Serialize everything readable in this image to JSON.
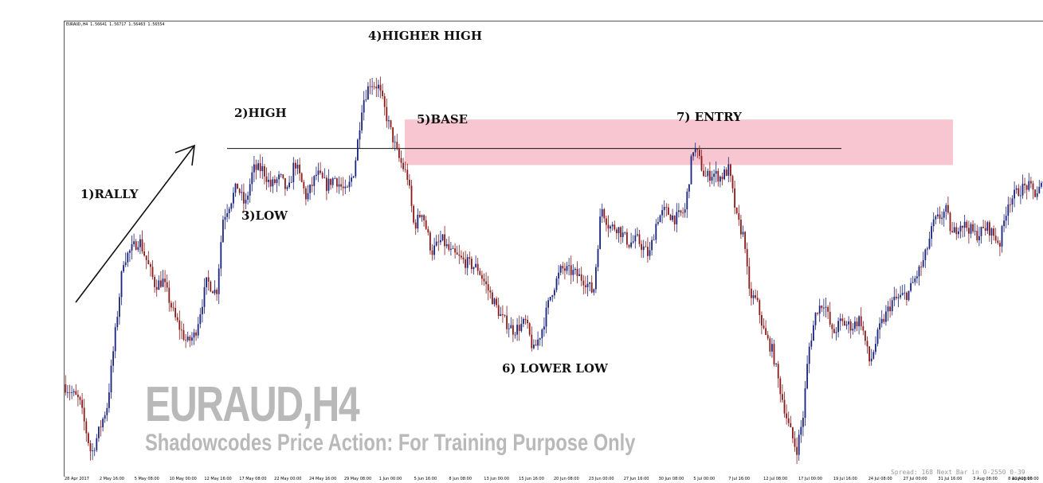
{
  "symbol_header": "EURAUD,H4  1.56641 1.56717 1.56463 1.56554",
  "watermark": {
    "title": "EURAUD,H4",
    "subtitle": "Shadowcodes Price Action: For Training Purpose Only"
  },
  "status": "Spread: 168 Next Bar in 0-2550 0-39",
  "colors": {
    "bull": "#1a237e",
    "bear": "#8b1a1a",
    "zone": "#f8c6d0",
    "text": "#000000"
  },
  "chart_data": {
    "type": "candlestick",
    "title": "",
    "symbol": "EURAUD",
    "timeframe": "H4",
    "ylim": [
      0,
      100
    ],
    "x_tick_labels": [
      "28 Apr 2017",
      "2 May 16:00",
      "5 May 08:00",
      "10 May 00:00",
      "12 May 16:00",
      "17 May 08:00",
      "22 May 00:00",
      "24 May 16:00",
      "29 May 08:00",
      "1 Jun 00:00",
      "5 Jun 16:00",
      "8 Jun 08:00",
      "13 Jun 00:00",
      "15 Jun 16:00",
      "20 Jun 08:00",
      "23 Jun 00:00",
      "27 Jun 16:00",
      "30 Jun 08:00",
      "5 Jul 00:00",
      "7 Jul 16:00",
      "12 Jul 08:00",
      "17 Jul 00:00",
      "19 Jul 16:00",
      "24 Jul 08:00",
      "27 Jul 00:00",
      "31 Jul 16:00",
      "3 Aug 08:00",
      "8 Aug 00:00",
      "10 Aug 16:00"
    ],
    "price_path": [
      [
        0,
        20
      ],
      [
        20,
        16
      ],
      [
        35,
        3
      ],
      [
        55,
        15
      ],
      [
        75,
        50
      ],
      [
        95,
        55
      ],
      [
        115,
        44
      ],
      [
        125,
        45
      ],
      [
        140,
        36
      ],
      [
        155,
        30
      ],
      [
        165,
        32
      ],
      [
        180,
        45
      ],
      [
        192,
        42
      ],
      [
        200,
        60
      ],
      [
        218,
        68
      ],
      [
        228,
        63
      ],
      [
        238,
        72
      ],
      [
        250,
        72
      ],
      [
        260,
        68
      ],
      [
        272,
        70
      ],
      [
        282,
        66
      ],
      [
        290,
        74
      ],
      [
        305,
        65
      ],
      [
        318,
        71
      ],
      [
        330,
        68
      ],
      [
        340,
        70
      ],
      [
        355,
        66
      ],
      [
        365,
        72
      ],
      [
        375,
        88
      ],
      [
        385,
        93
      ],
      [
        395,
        92
      ],
      [
        405,
        85
      ],
      [
        420,
        75
      ],
      [
        432,
        70
      ],
      [
        440,
        58
      ],
      [
        450,
        62
      ],
      [
        462,
        52
      ],
      [
        475,
        55
      ],
      [
        485,
        52
      ],
      [
        500,
        50
      ],
      [
        520,
        48
      ],
      [
        535,
        42
      ],
      [
        550,
        36
      ],
      [
        565,
        33
      ],
      [
        580,
        35
      ],
      [
        590,
        28
      ],
      [
        600,
        33
      ],
      [
        612,
        42
      ],
      [
        625,
        48
      ],
      [
        640,
        47
      ],
      [
        655,
        45
      ],
      [
        665,
        42
      ],
      [
        675,
        63
      ],
      [
        685,
        58
      ],
      [
        695,
        58
      ],
      [
        710,
        54
      ],
      [
        720,
        55
      ],
      [
        735,
        51
      ],
      [
        745,
        60
      ],
      [
        755,
        62
      ],
      [
        768,
        60
      ],
      [
        780,
        62
      ],
      [
        790,
        77
      ],
      [
        795,
        76
      ],
      [
        805,
        70
      ],
      [
        815,
        71
      ],
      [
        825,
        70
      ],
      [
        835,
        72
      ],
      [
        845,
        60
      ],
      [
        855,
        55
      ],
      [
        860,
        42
      ],
      [
        870,
        40
      ],
      [
        880,
        32
      ],
      [
        890,
        28
      ],
      [
        898,
        20
      ],
      [
        910,
        10
      ],
      [
        920,
        4
      ],
      [
        928,
        12
      ],
      [
        935,
        28
      ],
      [
        945,
        38
      ],
      [
        955,
        40
      ],
      [
        965,
        32
      ],
      [
        975,
        35
      ],
      [
        990,
        34
      ],
      [
        1000,
        36
      ],
      [
        1012,
        25
      ],
      [
        1025,
        34
      ],
      [
        1040,
        40
      ],
      [
        1060,
        42
      ],
      [
        1080,
        50
      ],
      [
        1092,
        59
      ],
      [
        1108,
        62
      ],
      [
        1115,
        56
      ],
      [
        1125,
        59
      ],
      [
        1135,
        58
      ],
      [
        1145,
        56
      ],
      [
        1160,
        58
      ],
      [
        1175,
        54
      ],
      [
        1185,
        64
      ],
      [
        1200,
        67
      ],
      [
        1210,
        68
      ],
      [
        1220,
        66
      ],
      [
        1228,
        68
      ]
    ],
    "annotations": [
      {
        "id": "rally",
        "label": "1)RALLY",
        "price": 60
      },
      {
        "id": "high",
        "label": "2)HIGH",
        "price": 80
      },
      {
        "id": "low",
        "label": "3)LOW",
        "price": 58
      },
      {
        "id": "higher-high",
        "label": "4)HIGHER HIGH",
        "price": 98
      },
      {
        "id": "base",
        "label": "5)BASE",
        "price": 78
      },
      {
        "id": "lower-low",
        "label": "6) LOWER LOW",
        "price": 25
      },
      {
        "id": "entry",
        "label": "7) ENTRY",
        "price": 78
      }
    ],
    "zones": [
      {
        "label": "base-supply-zone",
        "price_low": 73,
        "price_high": 84
      }
    ],
    "lines": [
      {
        "label": "high-level",
        "price": 77
      }
    ]
  }
}
